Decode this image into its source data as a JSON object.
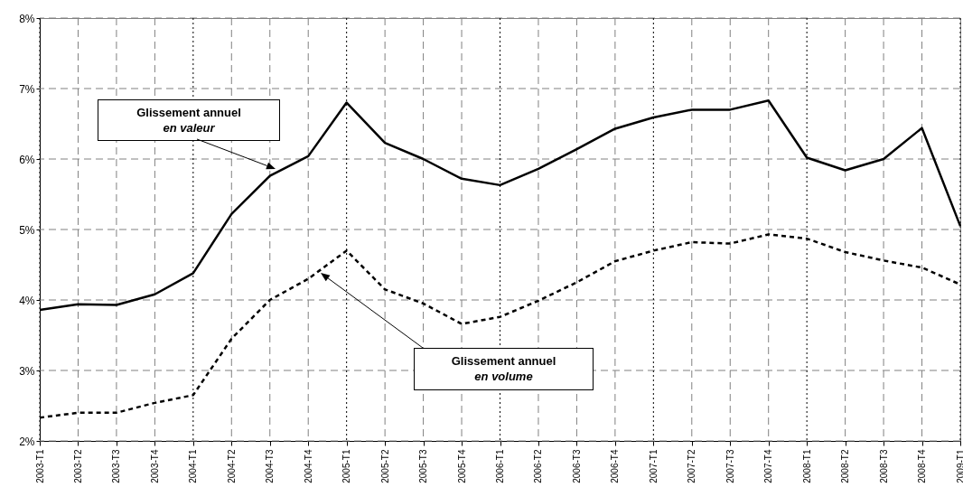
{
  "chart_data": {
    "type": "line",
    "categories": [
      "2003-T1",
      "2003-T2",
      "2003-T3",
      "2003-T4",
      "2004-T1",
      "2004-T2",
      "2004-T3",
      "2004-T4",
      "2005-T1",
      "2005-T2",
      "2005-T3",
      "2005-T4",
      "2006-T1",
      "2006-T2",
      "2006-T3",
      "2006-T4",
      "2007-T1",
      "2007-T2",
      "2007-T3",
      "2007-T4",
      "2008-T1",
      "2008-T2",
      "2008-T3",
      "2008-T4",
      "2009-T1"
    ],
    "series": [
      {
        "color": "#000000",
        "line_style": "solid",
        "values": [
          3.86,
          3.94,
          3.93,
          4.08,
          4.38,
          5.22,
          5.76,
          6.04,
          6.8,
          6.23,
          6.0,
          5.72,
          5.63,
          5.86,
          6.14,
          6.43,
          6.59,
          6.7,
          6.7,
          6.83,
          6.02,
          5.84,
          6.0,
          6.44,
          5.05
        ]
      },
      {
        "color": "#000000",
        "line_style": "dashed",
        "values": [
          2.33,
          2.4,
          2.4,
          2.54,
          2.65,
          3.45,
          4.0,
          4.3,
          4.7,
          4.15,
          3.95,
          3.66,
          3.76,
          3.99,
          4.25,
          4.55,
          4.7,
          4.82,
          4.8,
          4.93,
          4.87,
          4.68,
          4.56,
          4.46,
          4.22
        ]
      }
    ],
    "ylim": [
      2,
      8
    ],
    "yticks": [
      {
        "value": 2,
        "label": "2%"
      },
      {
        "value": 3,
        "label": "3%"
      },
      {
        "value": 4,
        "label": "4%"
      },
      {
        "value": 5,
        "label": "5%"
      },
      {
        "value": 6,
        "label": "6%"
      },
      {
        "value": 7,
        "label": "7%"
      },
      {
        "value": 8,
        "label": "8%"
      }
    ],
    "grid": true,
    "marker": "none",
    "annotations": [
      "Glissement annuel\nen valeur",
      "Glissement annuel\nen volume"
    ]
  }
}
